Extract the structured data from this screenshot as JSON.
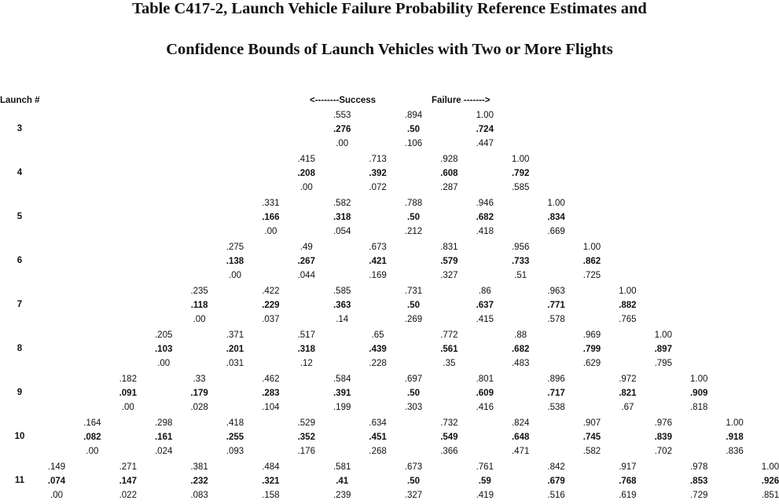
{
  "title": {
    "line1": "Table C417-2, Launch Vehicle Failure Probability Reference Estimates and",
    "line2": "Confidence Bounds of Launch Vehicles with Two or More Flights"
  },
  "headers": {
    "launch": "Launch #",
    "success": "<--------Success",
    "failure": "Failure ------->"
  },
  "rows": [
    {
      "launch": "3",
      "cells": [
        {
          "upper": ".553",
          "estimate": ".276",
          "lower": ".00"
        },
        {
          "upper": ".894",
          "estimate": ".50",
          "lower": ".106"
        },
        {
          "upper": "1.00",
          "estimate": ".724",
          "lower": ".447"
        }
      ]
    },
    {
      "launch": "4",
      "cells": [
        {
          "upper": ".415",
          "estimate": ".208",
          "lower": ".00"
        },
        {
          "upper": ".713",
          "estimate": ".392",
          "lower": ".072"
        },
        {
          "upper": ".928",
          "estimate": ".608",
          "lower": ".287"
        },
        {
          "upper": "1.00",
          "estimate": ".792",
          "lower": ".585"
        }
      ]
    },
    {
      "launch": "5",
      "cells": [
        {
          "upper": ".331",
          "estimate": ".166",
          "lower": ".00"
        },
        {
          "upper": ".582",
          "estimate": ".318",
          "lower": ".054"
        },
        {
          "upper": ".788",
          "estimate": ".50",
          "lower": ".212"
        },
        {
          "upper": ".946",
          "estimate": ".682",
          "lower": ".418"
        },
        {
          "upper": "1.00",
          "estimate": ".834",
          "lower": ".669"
        }
      ]
    },
    {
      "launch": "6",
      "cells": [
        {
          "upper": ".275",
          "estimate": ".138",
          "lower": ".00"
        },
        {
          "upper": ".49",
          "estimate": ".267",
          "lower": ".044"
        },
        {
          "upper": ".673",
          "estimate": ".421",
          "lower": ".169"
        },
        {
          "upper": ".831",
          "estimate": ".579",
          "lower": ".327"
        },
        {
          "upper": ".956",
          "estimate": ".733",
          "lower": ".51"
        },
        {
          "upper": "1.00",
          "estimate": ".862",
          "lower": ".725"
        }
      ]
    },
    {
      "launch": "7",
      "cells": [
        {
          "upper": ".235",
          "estimate": ".118",
          "lower": ".00"
        },
        {
          "upper": ".422",
          "estimate": ".229",
          "lower": ".037"
        },
        {
          "upper": ".585",
          "estimate": ".363",
          "lower": ".14"
        },
        {
          "upper": ".731",
          "estimate": ".50",
          "lower": ".269"
        },
        {
          "upper": ".86",
          "estimate": ".637",
          "lower": ".415"
        },
        {
          "upper": ".963",
          "estimate": ".771",
          "lower": ".578"
        },
        {
          "upper": "1.00",
          "estimate": ".882",
          "lower": ".765"
        }
      ]
    },
    {
      "launch": "8",
      "cells": [
        {
          "upper": ".205",
          "estimate": ".103",
          "lower": ".00"
        },
        {
          "upper": ".371",
          "estimate": ".201",
          "lower": ".031"
        },
        {
          "upper": ".517",
          "estimate": ".318",
          "lower": ".12"
        },
        {
          "upper": ".65",
          "estimate": ".439",
          "lower": ".228"
        },
        {
          "upper": ".772",
          "estimate": ".561",
          "lower": ".35"
        },
        {
          "upper": ".88",
          "estimate": ".682",
          "lower": ".483"
        },
        {
          "upper": ".969",
          "estimate": ".799",
          "lower": ".629"
        },
        {
          "upper": "1.00",
          "estimate": ".897",
          "lower": ".795"
        }
      ]
    },
    {
      "launch": "9",
      "cells": [
        {
          "upper": ".182",
          "estimate": ".091",
          "lower": ".00"
        },
        {
          "upper": ".33",
          "estimate": ".179",
          "lower": ".028"
        },
        {
          "upper": ".462",
          "estimate": ".283",
          "lower": ".104"
        },
        {
          "upper": ".584",
          "estimate": ".391",
          "lower": ".199"
        },
        {
          "upper": ".697",
          "estimate": ".50",
          "lower": ".303"
        },
        {
          "upper": ".801",
          "estimate": ".609",
          "lower": ".416"
        },
        {
          "upper": ".896",
          "estimate": ".717",
          "lower": ".538"
        },
        {
          "upper": ".972",
          "estimate": ".821",
          "lower": ".67"
        },
        {
          "upper": "1.00",
          "estimate": ".909",
          "lower": ".818"
        }
      ]
    },
    {
      "launch": "10",
      "cells": [
        {
          "upper": ".164",
          "estimate": ".082",
          "lower": ".00"
        },
        {
          "upper": ".298",
          "estimate": ".161",
          "lower": ".024"
        },
        {
          "upper": ".418",
          "estimate": ".255",
          "lower": ".093"
        },
        {
          "upper": ".529",
          "estimate": ".352",
          "lower": ".176"
        },
        {
          "upper": ".634",
          "estimate": ".451",
          "lower": ".268"
        },
        {
          "upper": ".732",
          "estimate": ".549",
          "lower": ".366"
        },
        {
          "upper": ".824",
          "estimate": ".648",
          "lower": ".471"
        },
        {
          "upper": ".907",
          "estimate": ".745",
          "lower": ".582"
        },
        {
          "upper": ".976",
          "estimate": ".839",
          "lower": ".702"
        },
        {
          "upper": "1.00",
          "estimate": ".918",
          "lower": ".836"
        }
      ]
    },
    {
      "launch": "11",
      "cells": [
        {
          "upper": ".149",
          "estimate": ".074",
          "lower": ".00"
        },
        {
          "upper": ".271",
          "estimate": ".147",
          "lower": ".022"
        },
        {
          "upper": ".381",
          "estimate": ".232",
          "lower": ".083"
        },
        {
          "upper": ".484",
          "estimate": ".321",
          "lower": ".158"
        },
        {
          "upper": ".581",
          "estimate": ".41",
          "lower": ".239"
        },
        {
          "upper": ".673",
          "estimate": ".50",
          "lower": ".327"
        },
        {
          "upper": ".761",
          "estimate": ".59",
          "lower": ".419"
        },
        {
          "upper": ".842",
          "estimate": ".679",
          "lower": ".516"
        },
        {
          "upper": ".917",
          "estimate": ".768",
          "lower": ".619"
        },
        {
          "upper": ".978",
          "estimate": ".853",
          "lower": ".729"
        },
        {
          "upper": "1.00",
          "estimate": ".926",
          "lower": ".851"
        }
      ]
    }
  ]
}
